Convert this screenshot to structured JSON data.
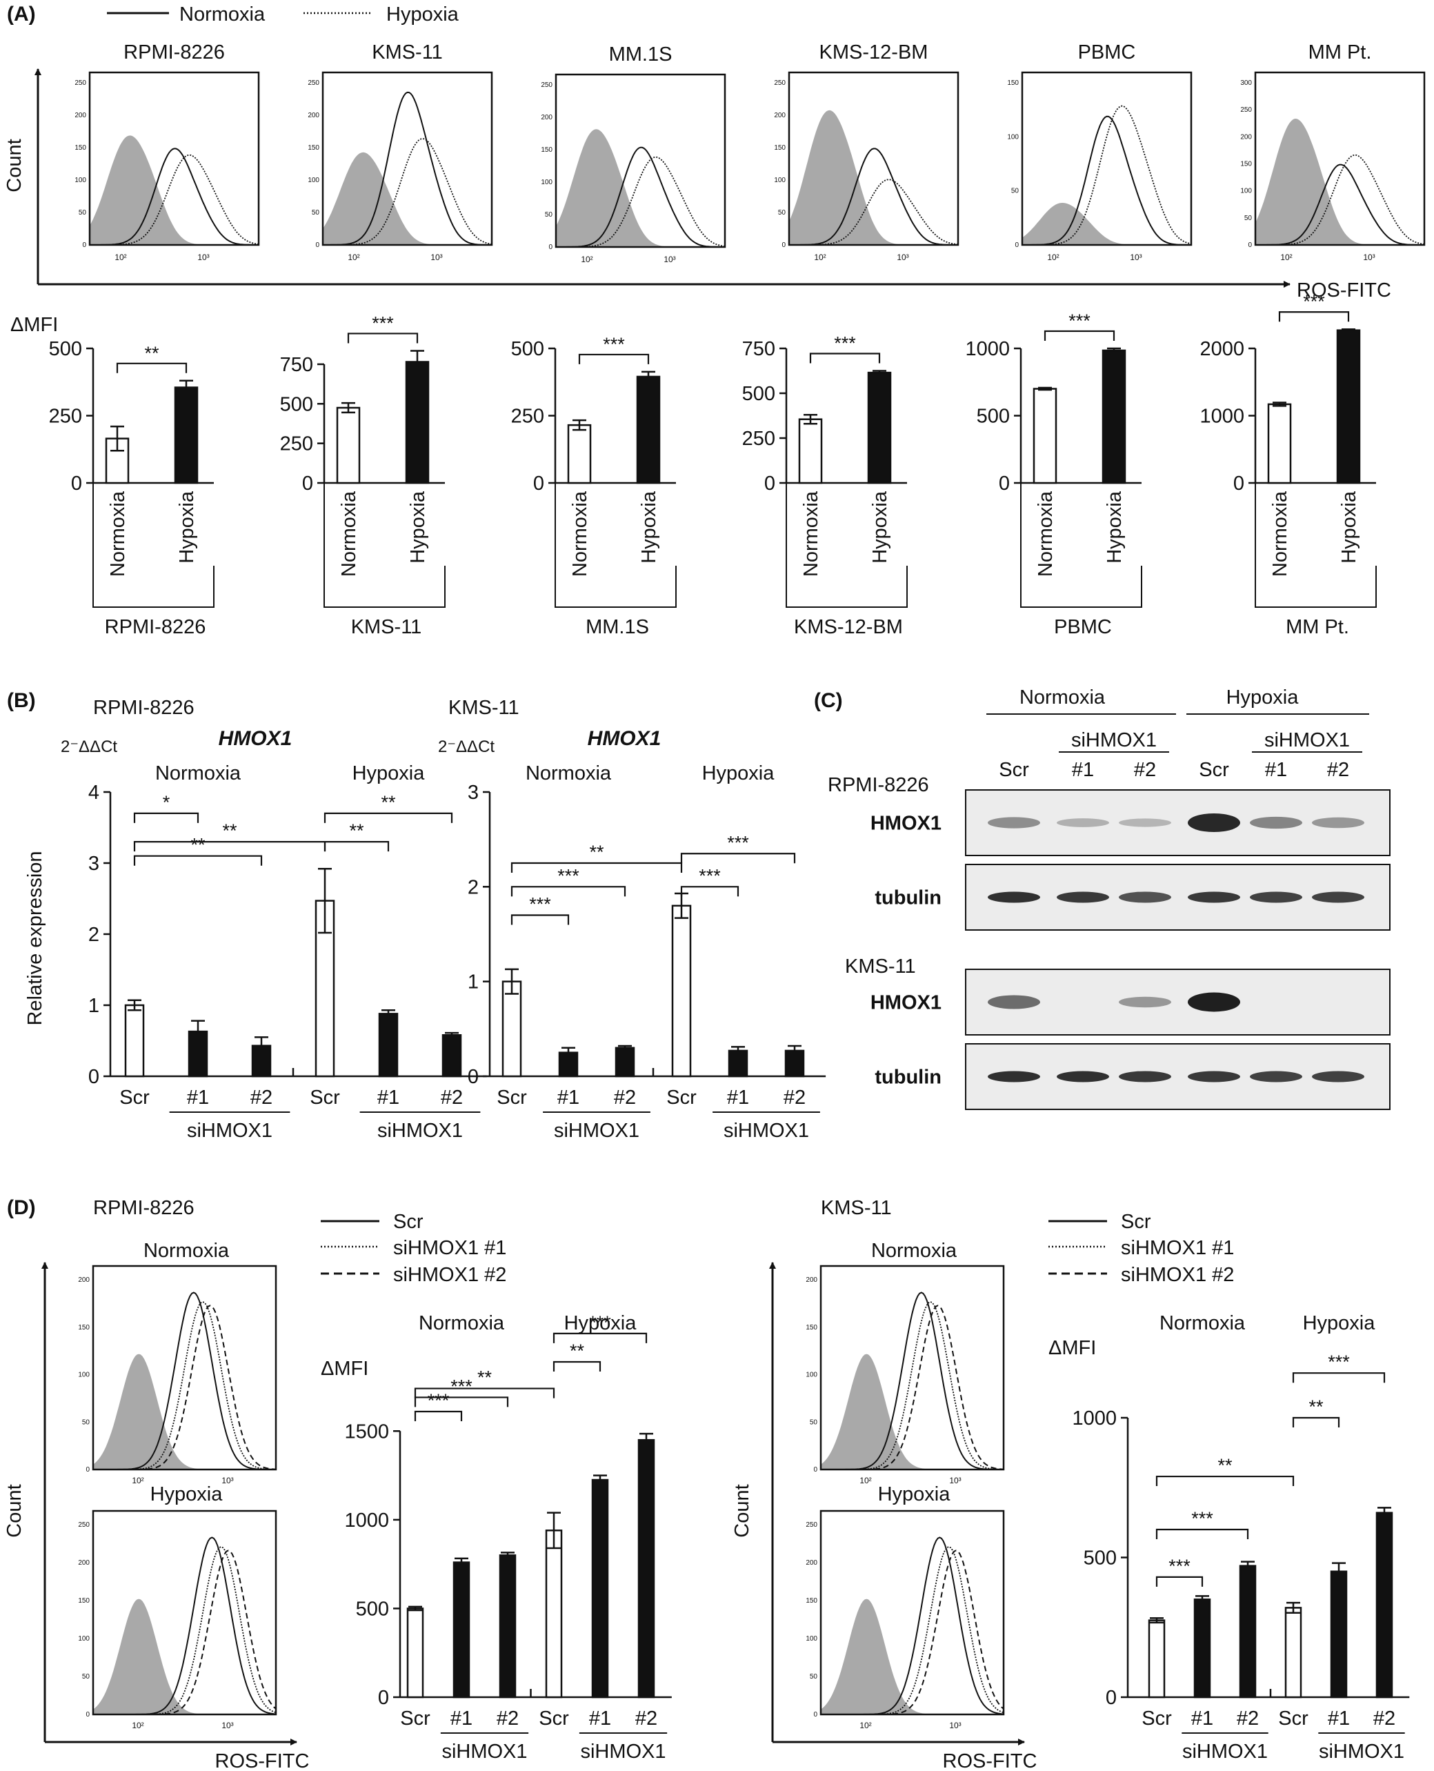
{
  "panel_labels": {
    "a": "(A)",
    "b": "(B)",
    "c": "(C)",
    "d": "(D)"
  },
  "legend_a": {
    "normoxia": "Normoxia",
    "hypoxia": "Hypoxia"
  },
  "legend_d": {
    "scr": "Scr",
    "si1": "siHMOX1 #1",
    "si2": "siHMOX1 #2"
  },
  "axes_text": {
    "count": "Count",
    "ros": "ROS-FITC",
    "dmfi": "ΔMFI",
    "relexp": "Relative expression",
    "ddct": "2⁻ΔΔCt",
    "gene": "HMOX1"
  },
  "groups": {
    "normoxia": "Normoxia",
    "hypoxia": "Hypoxia",
    "scr": "Scr",
    "s1": "#1",
    "s2": "#2",
    "sihmox1": "siHMOX1"
  },
  "colors": {
    "black": "#111111",
    "gray_fill": "#a9a9a9",
    "blot_bg": "#ececec"
  },
  "chart_data": [
    {
      "type": "histogram-panels",
      "panel": "A-top",
      "xscale": "log",
      "xtick_labels": [
        "10²",
        "10³",
        "10⁴"
      ],
      "panels": [
        {
          "title": "RPMI-8226",
          "ymax": 250,
          "yticks": [
            "0",
            "50",
            "100",
            "150",
            "200",
            "250"
          ]
        },
        {
          "title": "KMS-11",
          "ymax": 250,
          "yticks": [
            "0",
            "50",
            "100",
            "150",
            "200",
            "250"
          ]
        },
        {
          "title": "MM.1S",
          "ymax": 250,
          "yticks": [
            "0",
            "50",
            "100",
            "150",
            "200",
            "250"
          ]
        },
        {
          "title": "KMS-12-BM",
          "ymax": 250,
          "yticks": [
            "0",
            "50",
            "100",
            "150",
            "200",
            "250"
          ]
        },
        {
          "title": "PBMC",
          "ymax": 150,
          "yticks": [
            "0",
            "50",
            "100",
            "150"
          ]
        },
        {
          "title": "MM Pt.",
          "ymax": 300,
          "yticks": [
            "0",
            "50",
            "100",
            "150",
            "200",
            "250",
            "300"
          ]
        }
      ]
    },
    {
      "type": "bar",
      "panel": "A-bottom",
      "categories": [
        "Normoxia",
        "Hypoxia"
      ],
      "charts": [
        {
          "label": "RPMI-8226",
          "values": [
            165,
            355
          ],
          "errors": [
            45,
            25
          ],
          "ylim": [
            0,
            500
          ],
          "yticks": [
            0,
            250,
            500
          ],
          "sig": "**"
        },
        {
          "label": "KMS-11",
          "values": [
            475,
            765
          ],
          "errors": [
            30,
            70
          ],
          "ylim": [
            0,
            850
          ],
          "yticks": [
            0,
            250,
            500,
            750
          ],
          "sig": "***"
        },
        {
          "label": "MM.1S",
          "values": [
            215,
            395
          ],
          "errors": [
            18,
            18
          ],
          "ylim": [
            0,
            500
          ],
          "yticks": [
            0,
            250,
            500
          ],
          "sig": "***"
        },
        {
          "label": "KMS-12-BM",
          "values": [
            355,
            615
          ],
          "errors": [
            25,
            10
          ],
          "ylim": [
            0,
            750
          ],
          "yticks": [
            0,
            250,
            500,
            750
          ],
          "sig": "***"
        },
        {
          "label": "PBMC",
          "values": [
            700,
            985
          ],
          "errors": [
            8,
            15
          ],
          "ylim": [
            0,
            1000
          ],
          "yticks": [
            0,
            500,
            1000
          ],
          "sig": "***"
        },
        {
          "label": "MM Pt.",
          "values": [
            1170,
            2270
          ],
          "errors": [
            25,
            15
          ],
          "ylim": [
            0,
            2000
          ],
          "yticks": [
            0,
            1000,
            2000
          ],
          "sig": "***"
        }
      ]
    },
    {
      "type": "bar",
      "panel": "B",
      "categories": [
        "Scr",
        "#1",
        "#2",
        "Scr",
        "#1",
        "#2"
      ],
      "charts": [
        {
          "label": "RPMI-8226",
          "values": [
            1.0,
            0.63,
            0.43,
            2.47,
            0.88,
            0.58
          ],
          "errors": [
            0.07,
            0.15,
            0.12,
            0.45,
            0.05,
            0.03
          ],
          "ylim": [
            0,
            4
          ],
          "yticks": [
            0,
            1,
            2,
            3,
            4
          ],
          "white": [
            true,
            false,
            false,
            true,
            false,
            false
          ],
          "sig": [
            {
              "a": 0,
              "b": 1,
              "t": "*"
            },
            {
              "a": 0,
              "b": 2,
              "t": "**"
            },
            {
              "a": 0,
              "b": 3,
              "t": "**"
            },
            {
              "a": 3,
              "b": 4,
              "t": "**"
            },
            {
              "a": 3,
              "b": 5,
              "t": "**"
            }
          ]
        },
        {
          "label": "KMS-11",
          "values": [
            1.0,
            0.25,
            0.3,
            1.8,
            0.27,
            0.27
          ],
          "errors": [
            0.13,
            0.05,
            0.02,
            0.13,
            0.04,
            0.05
          ],
          "ylim": [
            0,
            3
          ],
          "yticks": [
            0,
            1,
            2,
            3
          ],
          "white": [
            true,
            false,
            false,
            true,
            false,
            false
          ],
          "sig": [
            {
              "a": 0,
              "b": 1,
              "t": "***"
            },
            {
              "a": 0,
              "b": 2,
              "t": "***"
            },
            {
              "a": 0,
              "b": 3,
              "t": "**"
            },
            {
              "a": 3,
              "b": 4,
              "t": "***"
            },
            {
              "a": 3,
              "b": 5,
              "t": "***"
            }
          ]
        }
      ]
    },
    {
      "type": "western-blot",
      "panel": "C",
      "lanes": [
        "Scr",
        "#1",
        "#2",
        "Scr",
        "#1",
        "#2"
      ],
      "blots": [
        {
          "cell": "RPMI-8226",
          "rows": [
            {
              "protein": "HMOX1",
              "intensity": [
                0.35,
                0.15,
                0.12,
                0.95,
                0.4,
                0.3
              ]
            },
            {
              "protein": "tubulin",
              "intensity": [
                0.9,
                0.85,
                0.7,
                0.85,
                0.8,
                0.8
              ]
            }
          ]
        },
        {
          "cell": "KMS-11",
          "rows": [
            {
              "protein": "HMOX1",
              "intensity": [
                0.55,
                0,
                0.3,
                1.0,
                0,
                0
              ]
            },
            {
              "protein": "tubulin",
              "intensity": [
                0.9,
                0.9,
                0.85,
                0.85,
                0.8,
                0.8
              ]
            }
          ]
        }
      ]
    },
    {
      "type": "bar",
      "panel": "D",
      "categories": [
        "Scr",
        "#1",
        "#2",
        "Scr",
        "#1",
        "#2"
      ],
      "charts": [
        {
          "label": "RPMI-8226",
          "values": [
            500,
            760,
            800,
            940,
            1225,
            1450
          ],
          "errors": [
            10,
            22,
            15,
            100,
            25,
            35
          ],
          "ylim": [
            0,
            1750
          ],
          "yticks": [
            0,
            500,
            1000,
            1500
          ],
          "white": [
            true,
            false,
            false,
            true,
            false,
            false
          ],
          "sig": [
            {
              "a": 0,
              "b": 1,
              "t": "***"
            },
            {
              "a": 0,
              "b": 2,
              "t": "***"
            },
            {
              "a": 0,
              "b": 3,
              "t": "**"
            },
            {
              "a": 3,
              "b": 4,
              "t": "**"
            },
            {
              "a": 3,
              "b": 5,
              "t": "***"
            }
          ]
        },
        {
          "label": "KMS-11",
          "values": [
            275,
            350,
            470,
            320,
            450,
            660
          ],
          "errors": [
            8,
            12,
            15,
            18,
            30,
            18
          ],
          "ylim": [
            0,
            1000
          ],
          "yticks": [
            0,
            500,
            1000
          ],
          "white": [
            true,
            false,
            false,
            true,
            false,
            false
          ],
          "sig": [
            {
              "a": 0,
              "b": 1,
              "t": "***"
            },
            {
              "a": 0,
              "b": 2,
              "t": "***"
            },
            {
              "a": 0,
              "b": 3,
              "t": "**"
            },
            {
              "a": 3,
              "b": 4,
              "t": "**"
            },
            {
              "a": 3,
              "b": 5,
              "t": "***"
            }
          ]
        }
      ]
    }
  ]
}
